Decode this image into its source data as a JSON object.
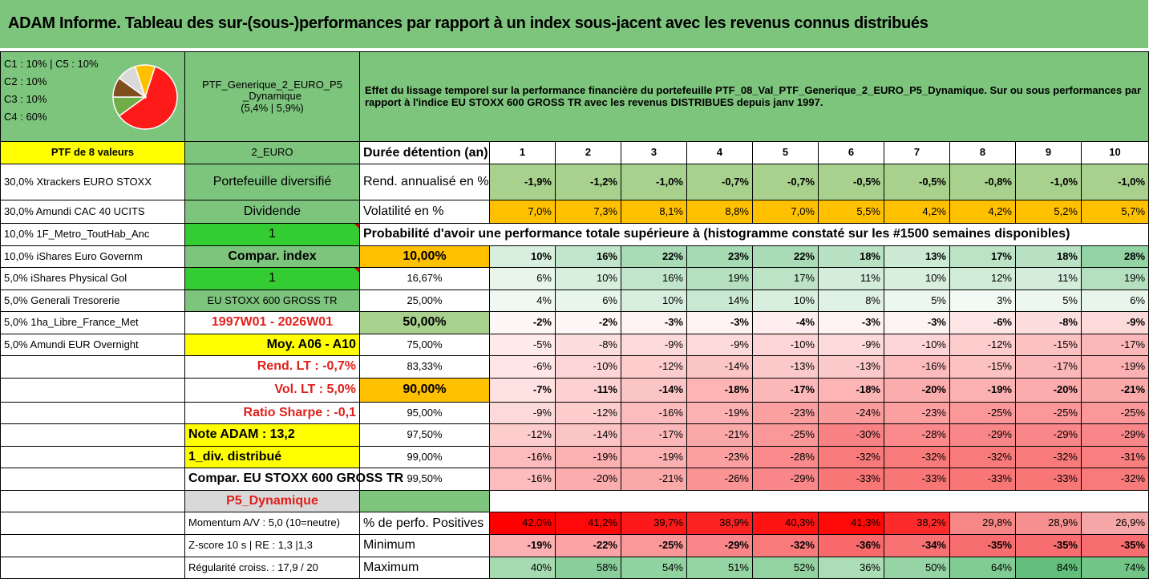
{
  "title": "ADAM Informe. Tableau des sur-(sous-)performances par rapport à un index sous-jacent avec les revenus connus distribués",
  "allocation": [
    "C1 : 10% | C5 : 10%",
    "C2 : 10%",
    "C3 : 10%",
    "C4 : 60%"
  ],
  "pie": {
    "slices": [
      {
        "name": "C4",
        "value": 60,
        "color": "#ff1a1a"
      },
      {
        "name": "C1",
        "value": 10,
        "color": "#70ad47"
      },
      {
        "name": "C2",
        "value": 10,
        "color": "#7f4f1f"
      },
      {
        "name": "C3",
        "value": 10,
        "color": "#d9d9d9"
      },
      {
        "name": "C5",
        "value": 10,
        "color": "#ffc000"
      }
    ]
  },
  "portfolio": {
    "name": "PTF_Generique_2_EURO_P5_Dynamique",
    "name_line1": "PTF_Generique_2_EURO_P5",
    "name_line2": "_Dynamique",
    "perf": "(5,4% | 5,9%)",
    "description": "Effet du lissage temporel sur la performance financière du portefeuille PTF_08_Val_PTF_Generique_2_EURO_P5_Dynamique. Sur ou sous performances par rapport à l'indice EU STOXX 600 GROSS TR avec les revenus DISTRIBUES depuis janv 1997."
  },
  "left_labels": {
    "ptf_count": "PTF de 8 valeurs",
    "region": "2_EURO",
    "diversified": "Portefeuille diversifié",
    "dividend": "Dividende",
    "dividend_value": "1",
    "compar_index": "Compar. index",
    "compar_value": "1",
    "index_name": "EU STOXX 600 GROSS TR",
    "period": "1997W01 - 2026W01",
    "moy": "Moy. A06 - A10",
    "rend_lt": "Rend. LT : -0,7%",
    "vol_lt": "Vol. LT : 5,0%",
    "sharpe": "Ratio Sharpe : -0,1",
    "note": "Note ADAM : 13,2",
    "div": "1_div. distribué",
    "compar_full": "Compar. EU STOXX 600 GROSS TR",
    "profile": "P5_Dynamique",
    "momentum": "Momentum A/V : 5,0 (10=neutre)",
    "zscore": "Z-score 10 s | RE : 1,3 |1,3",
    "regularite": "Régularité croiss. : 17,9 / 20"
  },
  "holdings": [
    "30,0% Xtrackers EURO STOXX",
    "30,0% Amundi CAC 40 UCITS",
    "10,0% 1F_Metro_ToutHab_Anc",
    "10,0% iShares Euro Governm",
    "5,0% iShares Physical Gol",
    "5,0% Generali Tresorerie",
    "5,0% 1ha_Libre_France_Met",
    "5,0% Amundi EUR Overnight"
  ],
  "table": {
    "holding_label": "Durée détention (an)",
    "years": [
      "1",
      "2",
      "3",
      "4",
      "5",
      "6",
      "7",
      "8",
      "9",
      "10"
    ],
    "rend_label": "Rend. annualisé en %",
    "rend": [
      "-1,9%",
      "-1,2%",
      "-1,0%",
      "-0,7%",
      "-0,7%",
      "-0,5%",
      "-0,5%",
      "-0,8%",
      "-1,0%",
      "-1,0%"
    ],
    "vol_label": "Volatilité en %",
    "vol": [
      "7,0%",
      "7,3%",
      "8,1%",
      "8,8%",
      "7,0%",
      "5,5%",
      "4,2%",
      "4,2%",
      "5,2%",
      "5,7%"
    ],
    "prob_title": "Probabilité d'avoir une performance totale supérieure à (histogramme constaté sur les #1500 semaines disponibles)",
    "prob_rows": [
      {
        "label": "10,00%",
        "values": [
          "10%",
          "16%",
          "22%",
          "23%",
          "22%",
          "18%",
          "13%",
          "17%",
          "18%",
          "28%"
        ]
      },
      {
        "label": "16,67%",
        "values": [
          "6%",
          "10%",
          "16%",
          "19%",
          "17%",
          "11%",
          "10%",
          "12%",
          "11%",
          "19%"
        ]
      },
      {
        "label": "25,00%",
        "values": [
          "4%",
          "6%",
          "10%",
          "14%",
          "10%",
          "8%",
          "5%",
          "3%",
          "5%",
          "6%"
        ]
      },
      {
        "label": "50,00%",
        "values": [
          "-2%",
          "-2%",
          "-3%",
          "-3%",
          "-4%",
          "-3%",
          "-3%",
          "-6%",
          "-8%",
          "-9%"
        ]
      },
      {
        "label": "75,00%",
        "values": [
          "-5%",
          "-8%",
          "-9%",
          "-9%",
          "-10%",
          "-9%",
          "-10%",
          "-12%",
          "-15%",
          "-17%"
        ]
      },
      {
        "label": "83,33%",
        "values": [
          "-6%",
          "-10%",
          "-12%",
          "-14%",
          "-13%",
          "-13%",
          "-16%",
          "-15%",
          "-17%",
          "-19%"
        ]
      },
      {
        "label": "90,00%",
        "values": [
          "-7%",
          "-11%",
          "-14%",
          "-18%",
          "-17%",
          "-18%",
          "-20%",
          "-19%",
          "-20%",
          "-21%"
        ]
      },
      {
        "label": "95,00%",
        "values": [
          "-9%",
          "-12%",
          "-16%",
          "-19%",
          "-23%",
          "-24%",
          "-23%",
          "-25%",
          "-25%",
          "-25%"
        ]
      },
      {
        "label": "97,50%",
        "values": [
          "-12%",
          "-14%",
          "-17%",
          "-21%",
          "-25%",
          "-30%",
          "-28%",
          "-29%",
          "-29%",
          "-29%"
        ]
      },
      {
        "label": "99,00%",
        "values": [
          "-16%",
          "-19%",
          "-19%",
          "-23%",
          "-28%",
          "-32%",
          "-32%",
          "-32%",
          "-32%",
          "-31%"
        ]
      },
      {
        "label": "99,50%",
        "values": [
          "-16%",
          "-20%",
          "-21%",
          "-26%",
          "-29%",
          "-33%",
          "-33%",
          "-33%",
          "-33%",
          "-32%"
        ]
      }
    ],
    "pos_label": "% de perfo. Positives",
    "pos": [
      "42,0%",
      "41,2%",
      "39,7%",
      "38,9%",
      "40,3%",
      "41,3%",
      "38,2%",
      "29,8%",
      "28,9%",
      "26,9%"
    ],
    "min_label": "Minimum",
    "min": [
      "-19%",
      "-22%",
      "-25%",
      "-29%",
      "-32%",
      "-36%",
      "-34%",
      "-35%",
      "-35%",
      "-35%"
    ],
    "max_label": "Maximum",
    "max": [
      "40%",
      "58%",
      "54%",
      "51%",
      "52%",
      "36%",
      "50%",
      "64%",
      "84%",
      "74%"
    ]
  },
  "colors": {
    "green": "#7dc47d",
    "light_green": "#a9d18e",
    "yellow": "#ffff00",
    "bright_green": "#33cc33",
    "orange": "#ffc000",
    "red_text": "#e0201b"
  }
}
